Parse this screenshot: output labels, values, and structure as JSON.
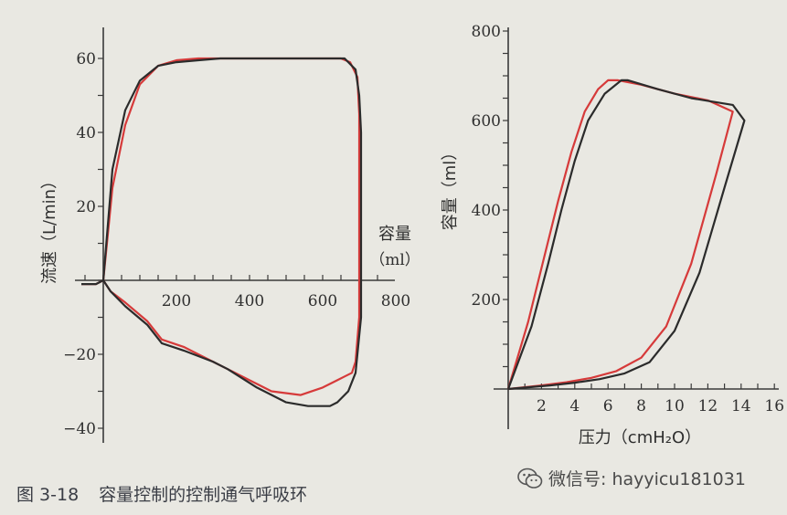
{
  "caption": {
    "number": "图 3-18",
    "text": "容量控制的控制通气呼吸环"
  },
  "watermark": {
    "icon": "wechat-icon",
    "text": "微信号: hayyicu181031"
  },
  "chart_data": [
    {
      "type": "line",
      "title": "",
      "xlabel": "容量",
      "xlabel_unit": "ml",
      "ylabel": "流速（L/min）",
      "xlim": [
        -60,
        800
      ],
      "ylim": [
        -40,
        70
      ],
      "xticks": [
        200,
        400,
        600,
        800
      ],
      "yticks": [
        -40,
        -20,
        20,
        40,
        60
      ],
      "grid": false,
      "colors": {
        "red": "#d63a3a",
        "black": "#2b2b2b"
      },
      "series": [
        {
          "color": "red",
          "x": [
            0,
            10,
            25,
            60,
            100,
            150,
            200,
            260,
            320,
            400,
            480,
            560,
            620,
            650,
            675,
            695,
            700,
            700,
            700,
            690,
            680,
            660,
            640,
            600,
            540,
            460,
            400,
            340,
            300,
            220,
            160,
            120,
            60,
            20,
            0,
            -20,
            -60
          ],
          "y": [
            0,
            10,
            25,
            42,
            53,
            58,
            59.5,
            60,
            60,
            60,
            60,
            60,
            60,
            60,
            59,
            55,
            45,
            10,
            -10,
            -22,
            -25,
            -26,
            -27,
            -29,
            -31,
            -30,
            -27,
            -24,
            -22,
            -18,
            -16,
            -11,
            -6,
            -3,
            0,
            -1,
            -1
          ]
        },
        {
          "color": "black",
          "x": [
            0,
            10,
            25,
            60,
            100,
            150,
            200,
            260,
            320,
            400,
            480,
            560,
            620,
            660,
            690,
            700,
            705,
            705,
            705,
            690,
            670,
            640,
            620,
            600,
            560,
            500,
            420,
            340,
            300,
            220,
            160,
            120,
            60,
            20,
            0,
            -20,
            -60
          ],
          "y": [
            0,
            12,
            30,
            46,
            54,
            58,
            59,
            59.5,
            60,
            60,
            60,
            60,
            60,
            60,
            57,
            50,
            40,
            10,
            -10,
            -25,
            -30,
            -33,
            -34,
            -34,
            -34,
            -33,
            -29,
            -24,
            -22,
            -19,
            -17,
            -12,
            -7,
            -3,
            0,
            -1,
            -1
          ]
        }
      ]
    },
    {
      "type": "line",
      "title": "",
      "xlabel": "压力（cmH₂O）",
      "ylabel": "容量（ml）",
      "xlim": [
        0,
        16
      ],
      "ylim": [
        -20,
        800
      ],
      "xticks": [
        2,
        4,
        6,
        8,
        10,
        12,
        14,
        16
      ],
      "yticks": [
        200,
        400,
        600,
        800
      ],
      "grid": false,
      "colors": {
        "red": "#d63a3a",
        "black": "#2b2b2b"
      },
      "series": [
        {
          "color": "red",
          "x": [
            0,
            1.2,
            2.2,
            3,
            3.8,
            4.6,
            5.4,
            6,
            6.6,
            8,
            10,
            12,
            13.5,
            12.5,
            11,
            9.5,
            8,
            6.5,
            5,
            3.5,
            2,
            0
          ],
          "y": [
            0,
            150,
            300,
            420,
            530,
            620,
            670,
            690,
            690,
            680,
            660,
            645,
            620,
            480,
            280,
            140,
            70,
            40,
            25,
            15,
            8,
            0
          ]
        },
        {
          "color": "black",
          "x": [
            0,
            1.4,
            2.4,
            3.2,
            4,
            4.8,
            5.8,
            6.8,
            7.2,
            9,
            11,
            13.5,
            14.2,
            13,
            11.5,
            10,
            8.5,
            7,
            5.5,
            4,
            2.5,
            0
          ],
          "y": [
            0,
            140,
            280,
            400,
            510,
            600,
            660,
            690,
            690,
            670,
            650,
            635,
            600,
            450,
            260,
            130,
            60,
            35,
            22,
            14,
            8,
            0
          ]
        }
      ]
    }
  ]
}
